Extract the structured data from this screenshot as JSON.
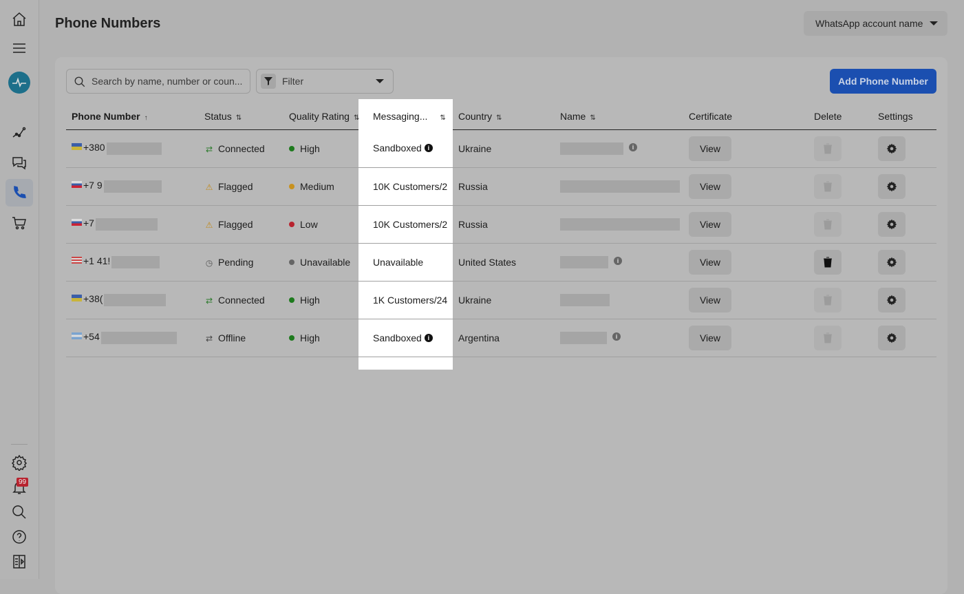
{
  "page": {
    "title": "Phone Numbers"
  },
  "account": {
    "label": "WhatsApp account name"
  },
  "toolbar": {
    "search_placeholder": "Search by name, number or coun...",
    "filter_label": "Filter",
    "add_label": "Add Phone Number"
  },
  "notifications": {
    "badge": "99"
  },
  "colors": {
    "accent": "#1b4fb0",
    "highlight": "#ffffff",
    "badge": "#b8232f"
  },
  "table": {
    "headers": [
      "Phone Number",
      "Status",
      "Quality Rating",
      "Messaging...",
      "Country",
      "Name",
      "Certificate",
      "Delete",
      "Settings"
    ],
    "rows": [
      {
        "flag": "ua",
        "phone": "+380",
        "status": "Connected",
        "status_icon": "arrows-icon",
        "status_color": "#2a7a2a",
        "quality": "High",
        "quality_color": "#1d7a1d",
        "messaging": "Sandboxed",
        "messaging_info": true,
        "country": "Ukraine",
        "name_info": true,
        "cert": "View",
        "delete_enabled": false
      },
      {
        "flag": "ru",
        "phone": "+7 9",
        "status": "Flagged",
        "status_icon": "warning-icon",
        "status_color": "#c08a1e",
        "quality": "Medium",
        "quality_color": "#c8911e",
        "messaging": "10K Customers/2",
        "messaging_info": false,
        "country": "Russia",
        "name_info": false,
        "cert": "View",
        "delete_enabled": false
      },
      {
        "flag": "ru",
        "phone": "+7",
        "status": "Flagged",
        "status_icon": "warning-icon",
        "status_color": "#c08a1e",
        "quality": "Low",
        "quality_color": "#b8232f",
        "messaging": "10K Customers/2",
        "messaging_info": false,
        "country": "Russia",
        "name_info": false,
        "cert": "View",
        "delete_enabled": false
      },
      {
        "flag": "us",
        "phone": "+1 41!",
        "status": "Pending",
        "status_icon": "clock-icon",
        "status_color": "#555",
        "quality": "Unavailable",
        "quality_color": "#666",
        "messaging": "Unavailable",
        "messaging_info": false,
        "country": "United States",
        "name_info": true,
        "cert": "View",
        "delete_enabled": true
      },
      {
        "flag": "ua",
        "phone": "+38(",
        "status": "Connected",
        "status_icon": "arrows-icon",
        "status_color": "#2a7a2a",
        "quality": "High",
        "quality_color": "#1d7a1d",
        "messaging": "1K Customers/24",
        "messaging_info": false,
        "country": "Ukraine",
        "name_info": false,
        "cert": "View",
        "delete_enabled": false
      },
      {
        "flag": "ar",
        "phone": "+54",
        "status": "Offline",
        "status_icon": "arrows-icon",
        "status_color": "#444",
        "quality": "High",
        "quality_color": "#1d7a1d",
        "messaging": "Sandboxed",
        "messaging_info": true,
        "country": "Argentina",
        "name_info": true,
        "cert": "View",
        "delete_enabled": false
      }
    ]
  }
}
